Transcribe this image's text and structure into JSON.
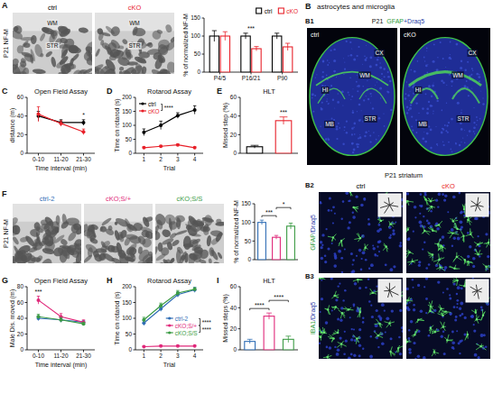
{
  "chart_data": [
    {
      "type": "image",
      "panel": "A",
      "label": "P21 NF-M",
      "images": [
        {
          "title": "ctrl",
          "color": "#000000",
          "annotations": [
            "WM",
            "STR"
          ]
        },
        {
          "title": "cKO",
          "color": "#e8212a",
          "annotations": [
            "WM",
            "STR"
          ]
        }
      ]
    },
    {
      "type": "bar",
      "y_label": "% of normalized NF-M",
      "categories": [
        "P4/5",
        "P16/21",
        "P90"
      ],
      "series": [
        {
          "name": "ctrl",
          "color": "#000000",
          "values": [
            100,
            100,
            100
          ],
          "errors": [
            15,
            8,
            8
          ]
        },
        {
          "name": "cKO",
          "color": "#e8212a",
          "values": [
            100,
            65,
            70
          ],
          "errors": [
            12,
            6,
            10
          ]
        }
      ],
      "ylim": [
        0,
        150
      ],
      "yticks": [
        0,
        50,
        100,
        150
      ],
      "legend": "top-right",
      "annotations": [
        {
          "text": "***",
          "at": 1
        }
      ]
    },
    {
      "type": "line",
      "panel": "C",
      "title": "Open Field Assay",
      "x_label": "Time interval (min)",
      "y_label": "distance (m)",
      "categories": [
        "0-10",
        "11-20",
        "21-30"
      ],
      "series": [
        {
          "color": "#000000",
          "values": [
            40,
            33,
            33
          ],
          "errors": [
            5,
            3,
            3
          ]
        },
        {
          "color": "#e8212a",
          "values": [
            42,
            32,
            23
          ],
          "errors": [
            8,
            3,
            3
          ]
        }
      ],
      "ylim": [
        0,
        60
      ],
      "yticks": [
        0,
        20,
        40,
        60
      ],
      "marker": "circle",
      "annotations": [
        {
          "text": "*",
          "at": 2
        }
      ]
    },
    {
      "type": "line",
      "panel": "D",
      "title": "Rotarod Assay",
      "x_label": "Trial",
      "y_label": "Time on rotarod (s)",
      "categories": [
        "1",
        "2",
        "3",
        "4"
      ],
      "series": [
        {
          "name": "ctrl",
          "color": "#000000",
          "values": [
            75,
            100,
            135,
            155
          ],
          "errors": [
            12,
            15,
            10,
            15
          ]
        },
        {
          "name": "cKO",
          "color": "#e8212a",
          "values": [
            20,
            25,
            30,
            20
          ],
          "errors": [
            3,
            3,
            3,
            3
          ]
        }
      ],
      "ylim": [
        0,
        200
      ],
      "yticks": [
        0,
        50,
        100,
        150,
        200
      ],
      "marker": "circle",
      "legend": "top-left",
      "annotations": [
        {
          "text": "****",
          "series": [
            0,
            1
          ]
        }
      ]
    },
    {
      "type": "bar",
      "panel": "E",
      "title": "HLT",
      "y_label": "Missed step (%)",
      "categories": [
        null,
        null
      ],
      "values": [
        7,
        35
      ],
      "errors": [
        1.5,
        4
      ],
      "colors": [
        "#000000",
        "#e8212a"
      ],
      "ylim": [
        0,
        60
      ],
      "yticks": [
        0,
        20,
        40,
        60
      ],
      "annotations": [
        {
          "text": "***",
          "at": 1
        }
      ]
    },
    {
      "type": "image",
      "panel": "F",
      "label": "P21 NF-M",
      "images": [
        {
          "title": "ctrl-2",
          "color": "#2f6db5"
        },
        {
          "title": "cKO;S/+",
          "color": "#e0287a"
        },
        {
          "title": "cKO;S/S",
          "color": "#3b9b44"
        }
      ]
    },
    {
      "type": "bar",
      "y_label": "% of normalized NF-M",
      "categories": [
        null,
        null,
        null
      ],
      "values": [
        100,
        60,
        90
      ],
      "errors": [
        6,
        5,
        8
      ],
      "colors": [
        "#2f6db5",
        "#e0287a",
        "#3b9b44"
      ],
      "ylim": [
        0,
        150
      ],
      "yticks": [
        0,
        50,
        100,
        150
      ],
      "annotations": [
        {
          "text": "***",
          "at": [
            0,
            1
          ]
        },
        {
          "text": "*",
          "at": [
            1,
            2
          ]
        }
      ]
    },
    {
      "type": "line",
      "panel": "G",
      "title": "Open Field Assay",
      "x_label": "Time interval (min)",
      "y_label": "Male Dis. moved (m)",
      "categories": [
        "0-10",
        "11-20",
        "21-30"
      ],
      "series": [
        {
          "color": "#2f6db5",
          "values": [
            40,
            38,
            35
          ],
          "errors": [
            3,
            3,
            2
          ]
        },
        {
          "color": "#e0287a",
          "values": [
            63,
            42,
            35
          ],
          "errors": [
            5,
            4,
            3
          ]
        },
        {
          "color": "#3b9b44",
          "values": [
            42,
            38,
            33
          ],
          "errors": [
            3,
            3,
            2
          ]
        }
      ],
      "ylim": [
        0,
        80
      ],
      "yticks": [
        0,
        20,
        40,
        60,
        80
      ],
      "marker": "circle",
      "annotations": [
        {
          "text": "***",
          "at": 0
        }
      ]
    },
    {
      "type": "line",
      "panel": "H",
      "title": "Rotarod Assay",
      "x_label": "Trial",
      "y_label": "Time on rotarod (s)",
      "categories": [
        "1",
        "2",
        "3",
        "4"
      ],
      "series": [
        {
          "name": "ctrl-2",
          "color": "#2f6db5",
          "values": [
            85,
            130,
            175,
            190
          ],
          "errors": [
            8,
            8,
            8,
            8
          ]
        },
        {
          "name": "cKO;S/+",
          "color": "#e0287a",
          "values": [
            10,
            12,
            12,
            12
          ],
          "errors": [
            2,
            2,
            2,
            2
          ]
        },
        {
          "name": "cKO;S/S",
          "color": "#3b9b44",
          "values": [
            95,
            140,
            180,
            192
          ],
          "errors": [
            8,
            8,
            8,
            5
          ]
        }
      ],
      "ylim": [
        0,
        200
      ],
      "yticks": [
        0,
        50,
        100,
        150,
        200
      ],
      "marker": "circle",
      "legend": "center",
      "annotations": [
        {
          "text": "****",
          "series": [
            0,
            1
          ]
        },
        {
          "text": "****",
          "series": [
            1,
            2
          ]
        }
      ]
    },
    {
      "type": "bar",
      "panel": "I",
      "title": "HLT",
      "y_label": "Missed steps (%)",
      "categories": [
        null,
        null,
        null
      ],
      "values": [
        8,
        32,
        10
      ],
      "errors": [
        2,
        3,
        3
      ],
      "colors": [
        "#2f6db5",
        "#e0287a",
        "#3b9b44"
      ],
      "ylim": [
        0,
        60
      ],
      "yticks": [
        0,
        20,
        40,
        60
      ],
      "annotations": [
        {
          "text": "****",
          "at": [
            0,
            1
          ]
        },
        {
          "text": "****",
          "at": [
            1,
            2
          ]
        }
      ]
    },
    {
      "type": "image",
      "panel": "B",
      "title": "astrocytes and microglia",
      "sections": [
        {
          "panel": "B1",
          "title": "P21",
          "label": "GFAP+Draq5",
          "colors": [
            "#2e9b3a",
            "#2c3ea8"
          ],
          "images": [
            {
              "title": "ctrl",
              "color": "#ffffff",
              "annotations": [
                "HI",
                "CX",
                "WM",
                "MB",
                "STR"
              ]
            },
            {
              "title": "cKO",
              "color": "#ffffff",
              "annotations": [
                "HI",
                "CX",
                "WM",
                "MB",
                "STR"
              ]
            }
          ]
        },
        {
          "panel": "B2",
          "title": "P21 striatum",
          "label": "GFAP/Draq5",
          "colors": [
            "#2e9b3a",
            "#2c3ea8"
          ],
          "images": [
            {
              "title": "ctrl",
              "color": "#000000"
            },
            {
              "title": "cKO",
              "color": "#e8212a"
            }
          ]
        },
        {
          "panel": "B3",
          "label": "IBA1/Draq5",
          "colors": [
            "#2e9b3a",
            "#2c3ea8"
          ]
        }
      ]
    }
  ]
}
